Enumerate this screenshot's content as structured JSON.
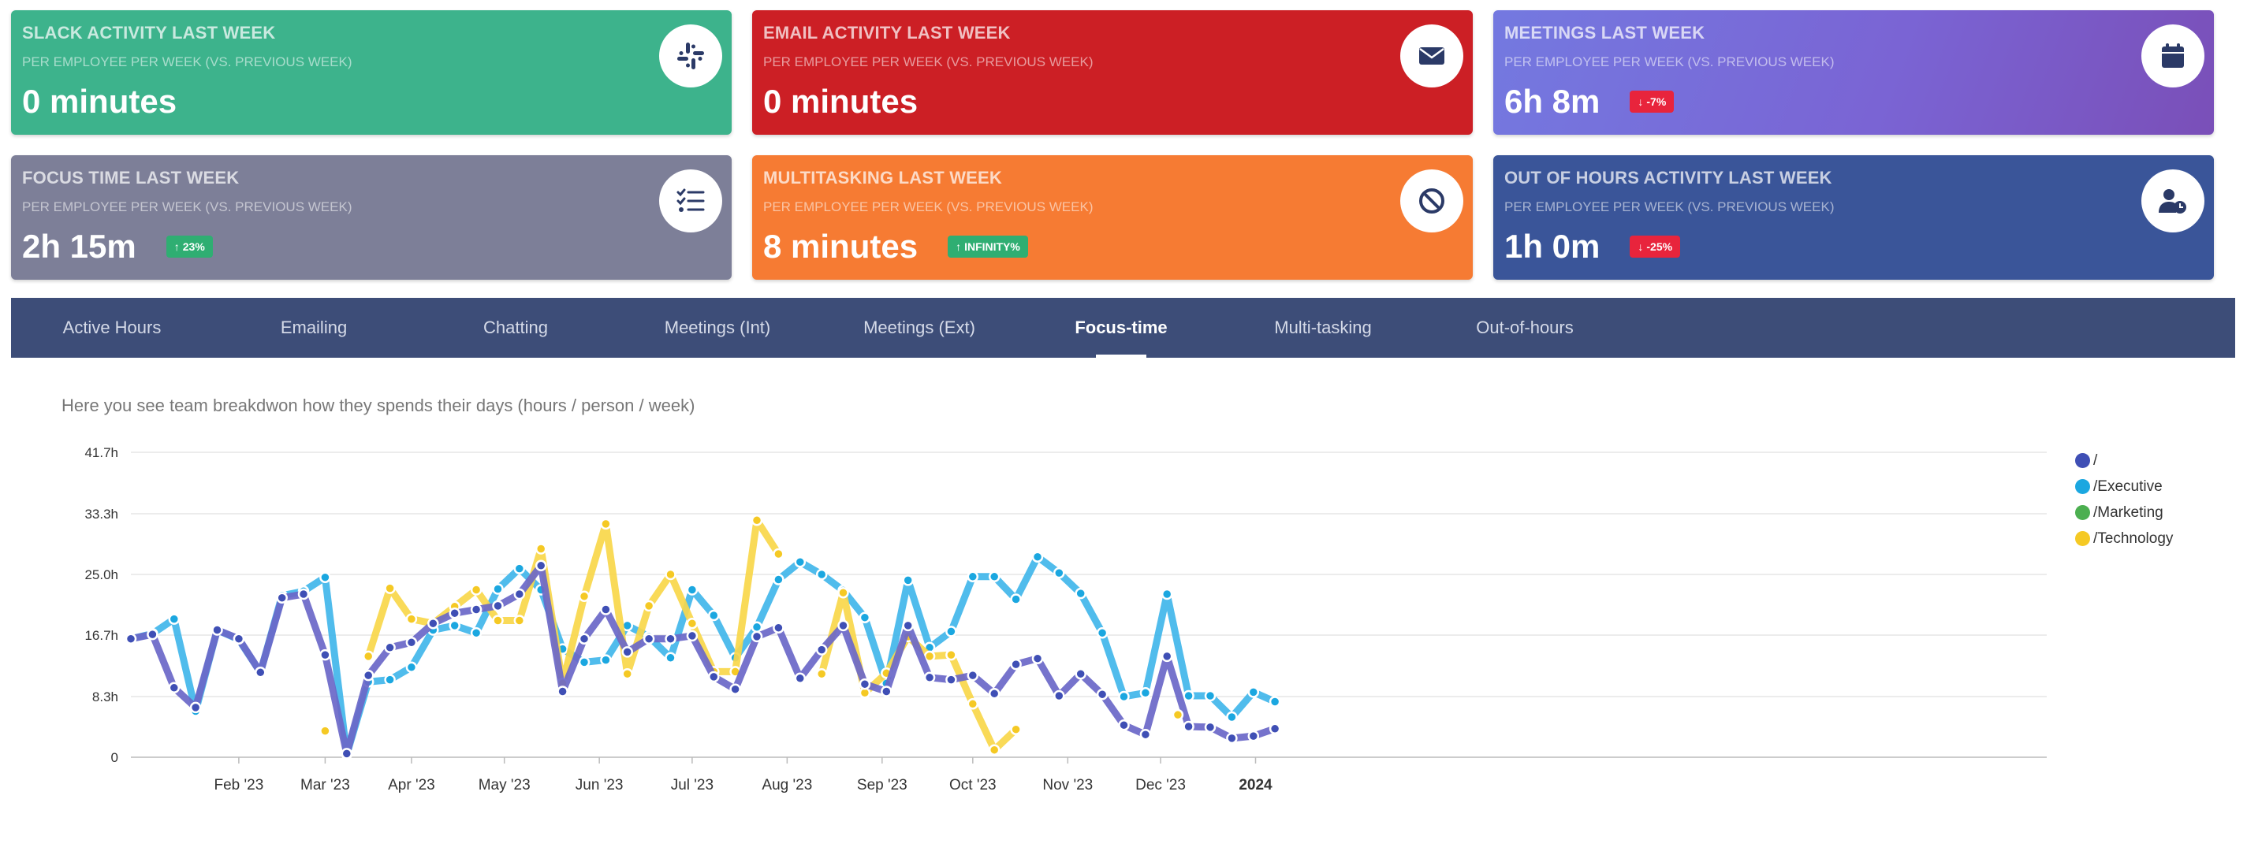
{
  "cards": [
    {
      "title": "Slack Activity Last Week",
      "subtitle": "Per employee per week (vs. previous week)",
      "value": "0 minutes",
      "badge": "",
      "icon": "slack-icon"
    },
    {
      "title": "Email Activity Last Week",
      "subtitle": "Per employee per week (vs. previous week)",
      "value": "0 minutes",
      "badge": "",
      "icon": "envelope-icon"
    },
    {
      "title": "Meetings Last Week",
      "subtitle": "Per employee per week (vs. previous week)",
      "value": "6h 8m",
      "badge": "-7%",
      "badge_dir": "down",
      "icon": "calendar-icon"
    },
    {
      "title": "Focus Time Last Week",
      "subtitle": "Per employee per week (vs. previous week)",
      "value": "2h 15m",
      "badge": "23%",
      "badge_dir": "up",
      "icon": "checklist-icon"
    },
    {
      "title": "Multitasking Last Week",
      "subtitle": "Per employee per week (vs. previous week)",
      "value": "8 minutes",
      "badge": "INFINITY%",
      "badge_dir": "up",
      "icon": "ban-icon"
    },
    {
      "title": "Out of Hours Activity Last Week",
      "subtitle": "Per employee per week (vs. previous week)",
      "value": "1h 0m",
      "badge": "-25%",
      "badge_dir": "down",
      "icon": "user-clock-icon"
    }
  ],
  "tabs": [
    "Active Hours",
    "Emailing",
    "Chatting",
    "Meetings (Int)",
    "Meetings (Ext)",
    "Focus-time",
    "Multi-tasking",
    "Out-of-hours"
  ],
  "active_tab": "Focus-time",
  "description": "Here you see team breakdwon how they spends their days (hours / person / week)",
  "colors": {
    "root": "#5b5bbf",
    "executive": "#3aaee6",
    "marketing": "#4caf50",
    "technology": "#f8d74a"
  },
  "chart_data": {
    "type": "line",
    "title": "",
    "xlabel": "",
    "ylabel": "",
    "ylim": [
      0,
      41.7
    ],
    "y_ticks": [
      "0",
      "8.3h",
      "16.7h",
      "25.0h",
      "33.3h",
      "41.7h"
    ],
    "y_tick_values": [
      0,
      8.3,
      16.7,
      25.0,
      33.3,
      41.7
    ],
    "x_ticks": [
      {
        "label": "Feb '23",
        "week": 5.0
      },
      {
        "label": "Mar '23",
        "week": 9.0
      },
      {
        "label": "Apr '23",
        "week": 13.0
      },
      {
        "label": "May '23",
        "week": 17.3
      },
      {
        "label": "Jun '23",
        "week": 21.7
      },
      {
        "label": "Jul '23",
        "week": 26.0
      },
      {
        "label": "Aug '23",
        "week": 30.4
      },
      {
        "label": "Sep '23",
        "week": 34.8
      },
      {
        "label": "Oct '23",
        "week": 39.0
      },
      {
        "label": "Nov '23",
        "week": 43.4
      },
      {
        "label": "Dec '23",
        "week": 47.7
      },
      {
        "label": "2024",
        "week": 52.1,
        "bold": true
      }
    ],
    "x_unit": "week index (0 = first week of Jan 2023)",
    "series": [
      {
        "name": "/",
        "color": "#5b5bbf",
        "values": [
          16.2,
          16.8,
          9.5,
          6.8,
          17.4,
          16.2,
          11.6,
          21.8,
          22.3,
          14.0,
          0.5,
          11.2,
          15.0,
          15.7,
          18.3,
          19.7,
          20.2,
          20.7,
          22.3,
          26.2,
          9.0,
          16.2,
          20.2,
          14.4,
          16.2,
          16.2,
          16.6,
          11.0,
          9.3,
          16.5,
          17.7,
          10.8,
          14.7,
          18.0,
          10.0,
          9.0,
          18.0,
          10.9,
          10.6,
          11.2,
          8.7,
          12.7,
          13.5,
          8.4,
          11.4,
          8.6,
          4.4,
          3.1,
          13.8,
          4.2,
          4.1,
          2.6,
          2.9,
          3.9
        ]
      },
      {
        "name": "/Executive",
        "color": "#3aaee6",
        "values": [
          16.2,
          16.9,
          18.9,
          6.3,
          17.4,
          16.1,
          11.6,
          22.1,
          22.7,
          24.6,
          0.4,
          10.3,
          10.6,
          12.3,
          17.4,
          18.0,
          17.0,
          23.0,
          25.8,
          22.9,
          14.8,
          13.0,
          13.3,
          18.0,
          16.5,
          13.6,
          22.9,
          19.4,
          13.6,
          17.8,
          24.3,
          26.7,
          25.0,
          22.8,
          19.1,
          10.1,
          24.2,
          15.0,
          17.2,
          24.7,
          24.7,
          21.6,
          27.4,
          25.2,
          22.4,
          17.0,
          8.3,
          8.8,
          22.3,
          8.4,
          8.4,
          5.5,
          8.9,
          7.6
        ]
      },
      {
        "name": "/Marketing",
        "color": "#4caf50",
        "values": []
      },
      {
        "name": "/Technology",
        "color": "#f8d74a",
        "values": [
          null,
          null,
          null,
          null,
          null,
          null,
          null,
          null,
          null,
          3.6,
          null,
          13.8,
          23.1,
          18.9,
          18.3,
          20.6,
          22.9,
          18.7,
          18.7,
          28.5,
          10.1,
          22.0,
          31.9,
          11.4,
          20.7,
          25.0,
          18.3,
          11.7,
          11.7,
          32.4,
          27.8,
          null,
          11.4,
          22.5,
          8.8,
          11.5,
          16.5,
          13.8,
          14.0,
          7.3,
          1.0,
          3.8
        ]
      }
    ],
    "legend": [
      "/",
      "/Executive",
      "/Marketing",
      "/Technology"
    ],
    "legend_position": "right",
    "grid": true
  }
}
